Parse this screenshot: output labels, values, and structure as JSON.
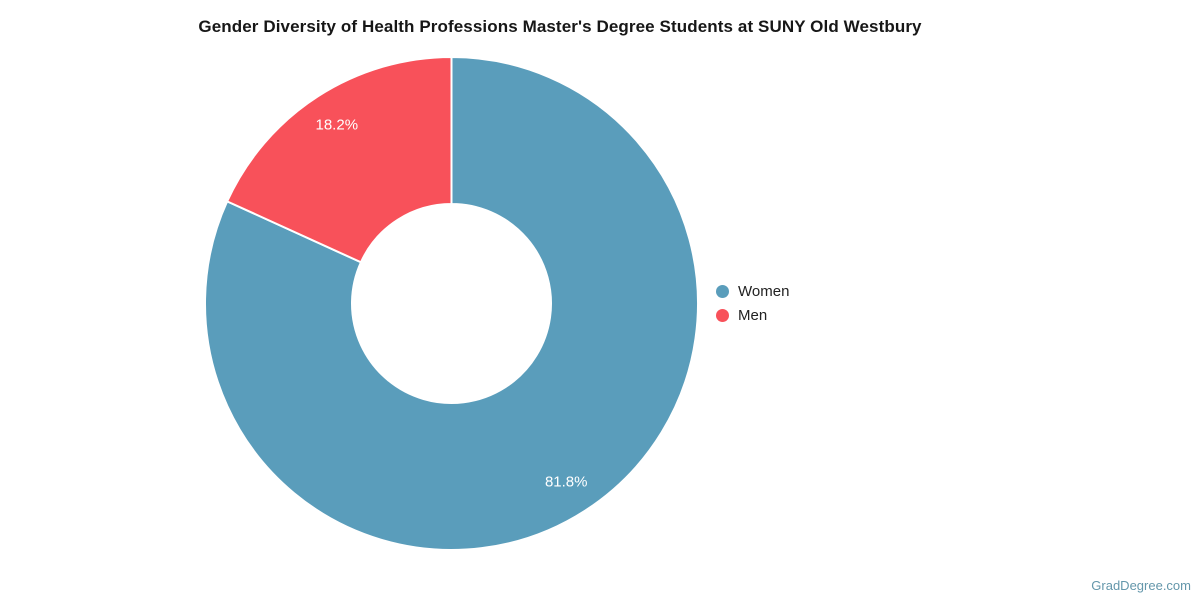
{
  "title": "Gender Diversity of Health Professions Master's Degree Students at SUNY Old Westbury",
  "watermark": "GradDegree.com",
  "chart_data": {
    "type": "pie",
    "subtype": "donut",
    "title": "Gender Diversity of Health Professions Master's Degree Students at SUNY Old Westbury",
    "labels": [
      "Women",
      "Men"
    ],
    "values": [
      81.8,
      18.2
    ],
    "value_labels": [
      "81.8%",
      "18.2%"
    ],
    "colors": [
      "#5a9dbb",
      "#f8515a"
    ],
    "slice_label_color": "#ffffff",
    "legend_position": "right",
    "start_angle_deg": 0,
    "direction": "clockwise",
    "inner_radius_ratio": 0.4
  },
  "legend": {
    "items": [
      {
        "label": "Women",
        "color": "#5a9dbb"
      },
      {
        "label": "Men",
        "color": "#f8515a"
      }
    ]
  }
}
